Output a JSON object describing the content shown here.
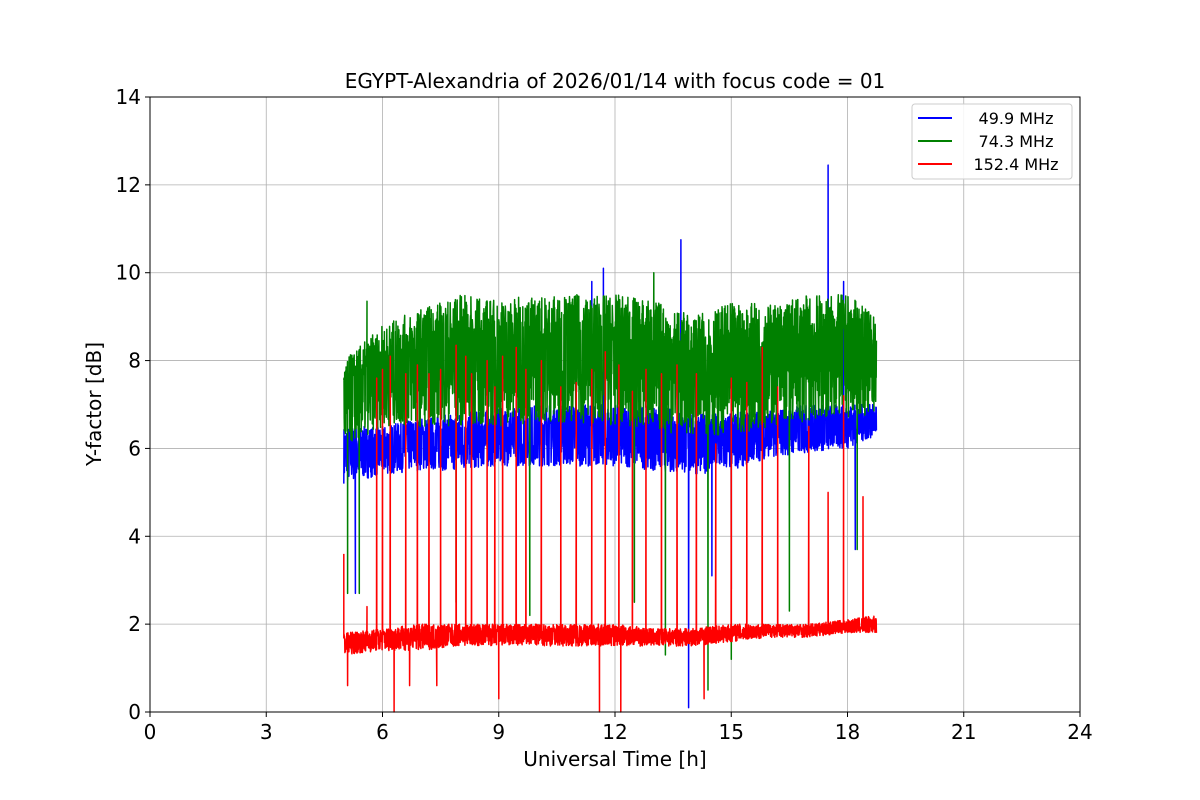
{
  "chart_data": {
    "type": "line",
    "title": "EGYPT-Alexandria of 2026/01/14 with focus code = 01",
    "xlabel": "Universal Time [h]",
    "ylabel": "Y-factor [dB]",
    "xlim": [
      0,
      24
    ],
    "ylim": [
      0,
      14
    ],
    "xticks": [
      0,
      3,
      6,
      9,
      12,
      15,
      18,
      21,
      24
    ],
    "yticks": [
      0,
      2,
      4,
      6,
      8,
      10,
      12,
      14
    ],
    "grid": true,
    "legend_position": "top-right",
    "series": [
      {
        "name": "49.9 MHz",
        "color": "#0000ff",
        "band": [
          [
            5,
            5.2,
            6.5
          ],
          [
            6,
            5.4,
            6.5
          ],
          [
            7,
            5.5,
            6.7
          ],
          [
            8,
            5.5,
            6.8
          ],
          [
            9,
            5.6,
            6.9
          ],
          [
            10,
            5.6,
            7.0
          ],
          [
            11,
            5.6,
            7.0
          ],
          [
            12,
            5.6,
            7.0
          ],
          [
            13,
            5.5,
            7.0
          ],
          [
            14,
            5.4,
            6.8
          ],
          [
            15,
            5.5,
            6.8
          ],
          [
            16,
            5.8,
            6.9
          ],
          [
            17,
            5.9,
            7.0
          ],
          [
            18,
            6.0,
            7.0
          ],
          [
            18.75,
            6.3,
            7.0
          ]
        ],
        "spikes": [
          [
            5.3,
            2.7
          ],
          [
            11.4,
            9.8
          ],
          [
            11.7,
            10.1
          ],
          [
            13.7,
            10.75
          ],
          [
            13.9,
            0.1
          ],
          [
            14.5,
            3.1
          ],
          [
            15.0,
            2.8
          ],
          [
            17.5,
            12.45
          ],
          [
            17.9,
            9.8
          ],
          [
            18.2,
            3.7
          ]
        ]
      },
      {
        "name": "74.3 MHz",
        "color": "#008000",
        "band": [
          [
            5,
            6.0,
            8.0
          ],
          [
            6,
            6.5,
            8.8
          ],
          [
            7,
            6.5,
            9.2
          ],
          [
            8,
            6.5,
            9.5
          ],
          [
            9,
            6.5,
            9.4
          ],
          [
            10,
            6.6,
            9.5
          ],
          [
            11,
            6.6,
            9.5
          ],
          [
            12,
            6.5,
            9.5
          ],
          [
            13,
            6.4,
            9.4
          ],
          [
            14,
            6.3,
            9.0
          ],
          [
            15,
            6.3,
            9.3
          ],
          [
            16,
            6.5,
            9.3
          ],
          [
            17,
            6.6,
            9.5
          ],
          [
            18,
            6.7,
            9.5
          ],
          [
            18.75,
            6.8,
            9.0
          ]
        ],
        "spikes": [
          [
            5.1,
            2.7
          ],
          [
            5.4,
            2.7
          ],
          [
            5.6,
            9.35
          ],
          [
            7.9,
            2.5
          ],
          [
            9.8,
            2.2
          ],
          [
            12.5,
            2.5
          ],
          [
            13.0,
            10.0
          ],
          [
            13.3,
            1.3
          ],
          [
            14.4,
            0.5
          ],
          [
            15.0,
            1.2
          ],
          [
            16.5,
            2.3
          ],
          [
            18.25,
            3.7
          ]
        ]
      },
      {
        "name": "152.4 MHz",
        "color": "#ff0000",
        "band": [
          [
            5,
            1.3,
            1.8
          ],
          [
            6,
            1.4,
            1.9
          ],
          [
            7,
            1.4,
            2.0
          ],
          [
            8,
            1.5,
            2.0
          ],
          [
            9,
            1.5,
            2.0
          ],
          [
            10,
            1.5,
            2.0
          ],
          [
            11,
            1.5,
            2.0
          ],
          [
            12,
            1.5,
            2.0
          ],
          [
            13,
            1.5,
            1.9
          ],
          [
            14,
            1.5,
            1.9
          ],
          [
            15,
            1.6,
            2.0
          ],
          [
            16,
            1.7,
            2.0
          ],
          [
            17,
            1.7,
            2.0
          ],
          [
            18,
            1.8,
            2.1
          ],
          [
            18.75,
            1.8,
            2.2
          ]
        ],
        "spikes": [
          [
            5.0,
            3.6
          ],
          [
            5.1,
            0.6
          ],
          [
            5.6,
            2.4
          ],
          [
            5.85,
            7.6
          ],
          [
            6.0,
            7.8
          ],
          [
            6.2,
            8.1
          ],
          [
            6.3,
            0.0
          ],
          [
            6.6,
            7.7
          ],
          [
            6.7,
            0.6
          ],
          [
            6.9,
            7.9
          ],
          [
            7.2,
            7.7
          ],
          [
            7.4,
            0.6
          ],
          [
            7.5,
            7.8
          ],
          [
            7.9,
            8.35
          ],
          [
            8.15,
            8.1
          ],
          [
            8.3,
            7.7
          ],
          [
            8.7,
            8.0
          ],
          [
            8.9,
            7.4
          ],
          [
            9.0,
            0.3
          ],
          [
            9.1,
            8.1
          ],
          [
            9.45,
            8.3
          ],
          [
            9.7,
            7.8
          ],
          [
            10.1,
            8.0
          ],
          [
            10.6,
            7.4
          ],
          [
            11.0,
            7.5
          ],
          [
            11.4,
            7.8
          ],
          [
            11.6,
            0.0
          ],
          [
            11.75,
            8.2
          ],
          [
            12.1,
            7.9
          ],
          [
            12.15,
            0.0
          ],
          [
            12.45,
            7.3
          ],
          [
            12.8,
            7.8
          ],
          [
            13.2,
            7.7
          ],
          [
            13.6,
            7.9
          ],
          [
            14.1,
            7.7
          ],
          [
            14.3,
            0.3
          ],
          [
            14.6,
            6.1
          ],
          [
            15.0,
            7.6
          ],
          [
            15.4,
            7.5
          ],
          [
            15.8,
            8.3
          ],
          [
            16.2,
            7.4
          ],
          [
            17.0,
            6.5
          ],
          [
            17.5,
            5.0
          ],
          [
            17.9,
            7.2
          ],
          [
            18.4,
            4.9
          ]
        ]
      }
    ]
  }
}
